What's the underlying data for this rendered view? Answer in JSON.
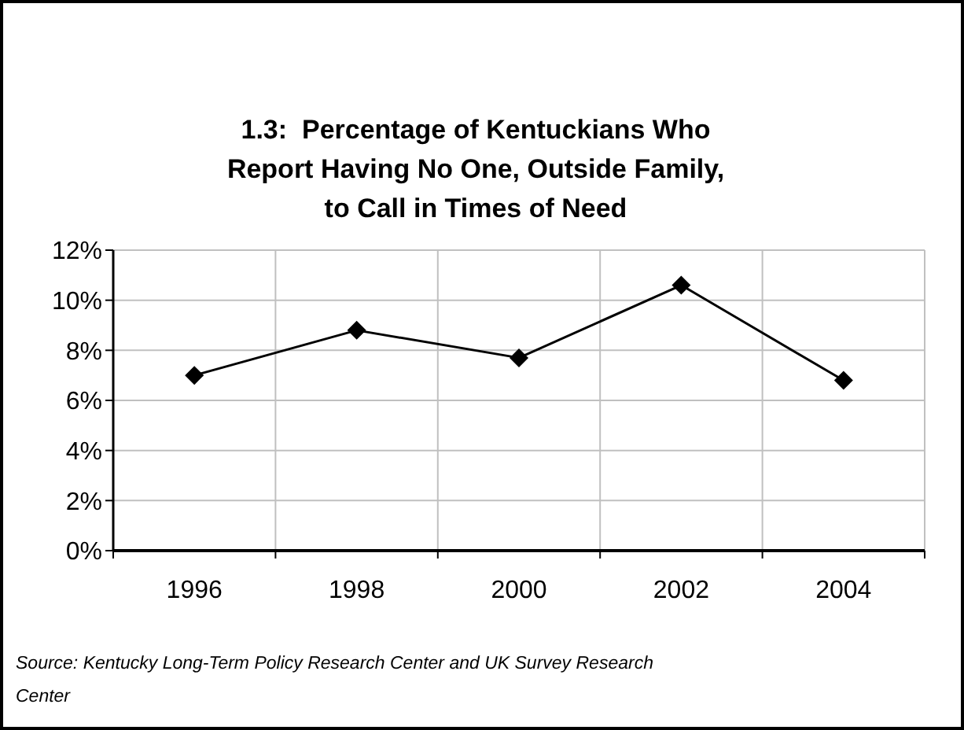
{
  "chart_data": {
    "type": "line",
    "title": "1.3:  Percentage of Kentuckians Who Report Having No One, Outside Family, to Call in Times of Need",
    "categories": [
      "1996",
      "1998",
      "2000",
      "2002",
      "2004"
    ],
    "series": [
      {
        "color": "#000000",
        "values": [
          7.0,
          8.8,
          7.7,
          10.6,
          6.8
        ]
      }
    ],
    "ylim": [
      0,
      12
    ],
    "yticks": [
      {
        "value": 0,
        "label": "0%"
      },
      {
        "value": 2,
        "label": "2%"
      },
      {
        "value": 4,
        "label": "4%"
      },
      {
        "value": 6,
        "label": "6%"
      },
      {
        "value": 8,
        "label": "8%"
      },
      {
        "value": 10,
        "label": "10%"
      },
      {
        "value": 12,
        "label": "12%"
      }
    ],
    "grid": true,
    "marker": "diamond",
    "line_style": "solid",
    "annotations": [
      "Source: Kentucky Long-Term Policy Research Center and UK Survey Research Center"
    ]
  }
}
